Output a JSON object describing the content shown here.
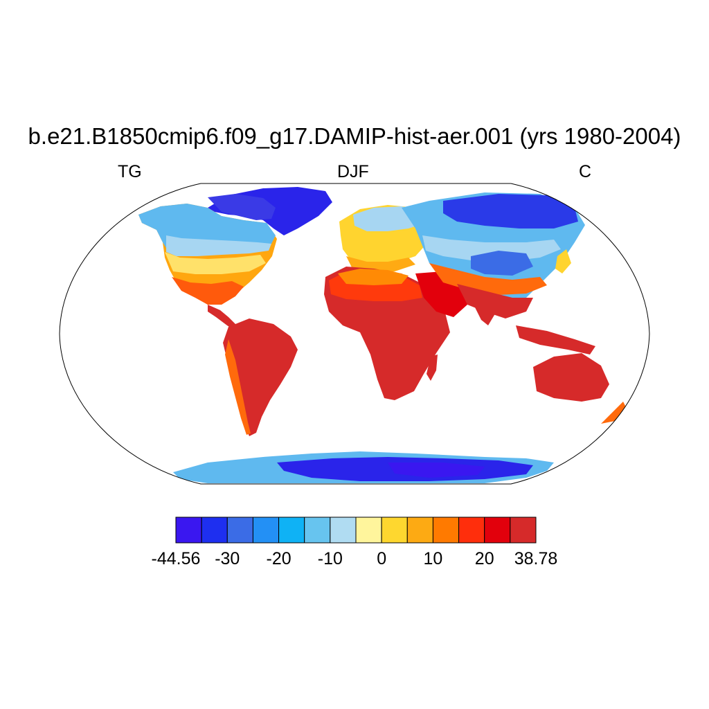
{
  "title": "b.e21.B1850cmip6.f09_g17.DAMIP-hist-aer.001 (yrs 1980-2004)",
  "left_string": "TG",
  "center_string": "DJF",
  "right_string": "C",
  "colorbar": {
    "colors": [
      "#3a17f0",
      "#1e2ff0",
      "#3b6ce6",
      "#2390f5",
      "#0fb2f5",
      "#67c4ef",
      "#b0dcf2",
      "#fff59c",
      "#fed72f",
      "#fdaa13",
      "#ff7a00",
      "#ff2e0c",
      "#e2000c",
      "#d62a2a"
    ],
    "labels": [
      "-44.56",
      "-30",
      "-20",
      "-10",
      "0",
      "10",
      "20",
      "38.78"
    ],
    "label_boundaries": [
      0,
      2,
      4,
      6,
      8,
      10,
      12,
      14
    ]
  }
}
